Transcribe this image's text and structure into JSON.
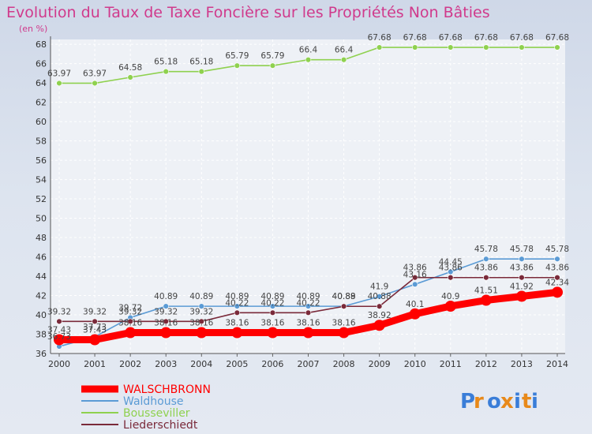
{
  "chart_data": {
    "type": "line",
    "title": "Evolution du Taux de Taxe Foncière sur les Propriétés Non Bâties",
    "unit_label": "(en %)",
    "x": [
      "2000",
      "2001",
      "2002",
      "2003",
      "2004",
      "2005",
      "2006",
      "2007",
      "2008",
      "2009",
      "2010",
      "2011",
      "2012",
      "2013",
      "2014"
    ],
    "yticks": [
      "36",
      "38",
      "40",
      "42",
      "44",
      "46",
      "48",
      "50",
      "52",
      "54",
      "56",
      "58",
      "60",
      "62",
      "64",
      "66",
      "68"
    ],
    "ylim": [
      36,
      68.5
    ],
    "grid": true,
    "legend_position": "bottom-left",
    "series": [
      {
        "name": "WALSCHBRONN",
        "color": "#ff0000",
        "thick": true,
        "values": [
          37.43,
          37.43,
          38.16,
          38.16,
          38.16,
          38.16,
          38.16,
          38.16,
          38.16,
          38.92,
          40.1,
          40.9,
          41.51,
          41.92,
          42.34
        ],
        "labels": [
          "37.43",
          "37.43",
          "38.16",
          "38.16",
          "38.16",
          "38.16",
          "38.16",
          "38.16",
          "38.16",
          "38.92",
          "40.1",
          "40.9",
          "41.51",
          "41.92",
          "42.34"
        ]
      },
      {
        "name": "Waldhouse",
        "color": "#5b9bd5",
        "thick": false,
        "values": [
          36.73,
          37.73,
          39.72,
          40.89,
          40.89,
          40.89,
          40.89,
          40.89,
          40.89,
          41.9,
          43.16,
          44.45,
          45.78,
          45.78,
          45.78
        ],
        "labels": [
          "36.73",
          "37.73",
          "39.72",
          "40.89",
          "40.89",
          "40.89",
          "40.89",
          "40.89",
          "40.89",
          "41.9",
          "43.16",
          "44.45",
          "45.78",
          "45.78",
          "45.78"
        ]
      },
      {
        "name": "Bousseviller",
        "color": "#8fd14f",
        "thick": false,
        "values": [
          63.97,
          63.97,
          64.58,
          65.18,
          65.18,
          65.79,
          65.79,
          66.4,
          66.4,
          67.68,
          67.68,
          67.68,
          67.68,
          67.68,
          67.68
        ],
        "labels": [
          "63.97",
          "63.97",
          "64.58",
          "65.18",
          "65.18",
          "65.79",
          "65.79",
          "66.4",
          "66.4",
          "67.68",
          "67.68",
          "67.68",
          "67.68",
          "67.68",
          "67.68"
        ]
      },
      {
        "name": "Liederschiedt",
        "color": "#7a2a3a",
        "thick": false,
        "values": [
          39.32,
          39.32,
          39.32,
          39.32,
          39.32,
          40.22,
          40.22,
          40.22,
          40.88,
          40.88,
          43.86,
          43.86,
          43.86,
          43.86,
          43.86
        ],
        "labels": [
          "39.32",
          "39.32",
          "39.32",
          "39.32",
          "39.32",
          "40.22",
          "40.22",
          "40.22",
          "40.88",
          "40.88",
          "43.86",
          "43.86",
          "43.86",
          "43.86",
          "43.86"
        ]
      }
    ]
  },
  "logo": {
    "text": "Proxiti",
    "letter_colors": [
      "#3a7dd8",
      "#e8891a",
      "#3a7dd8",
      "#e8891a",
      "#3a7dd8",
      "#e8891a",
      "#3a7dd8"
    ]
  }
}
